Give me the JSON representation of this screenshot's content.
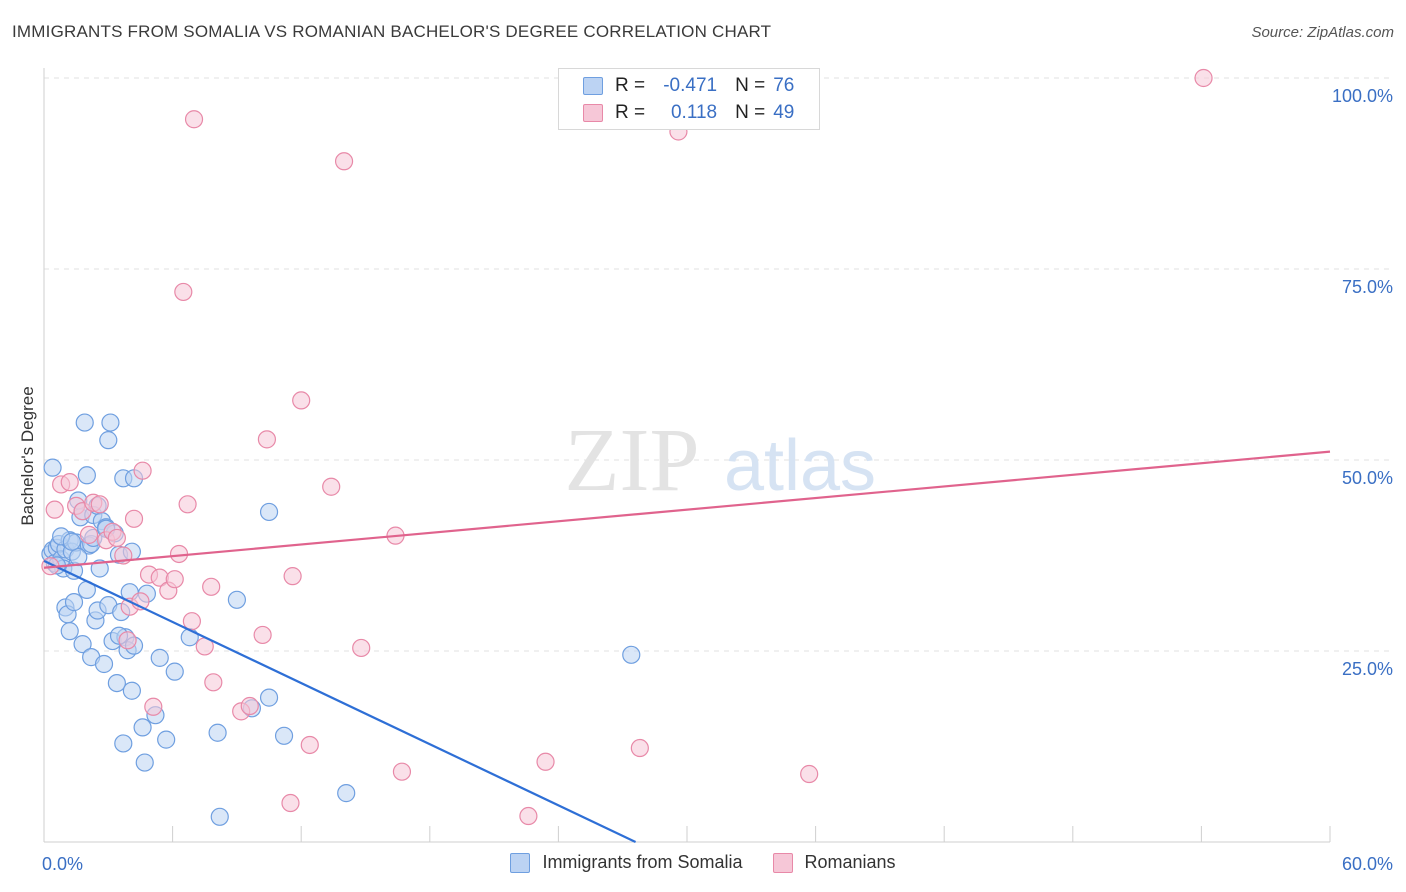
{
  "header": {
    "title": "IMMIGRANTS FROM SOMALIA VS ROMANIAN BACHELOR'S DEGREE CORRELATION CHART",
    "source": "Source: ZipAtlas.com"
  },
  "watermark": {
    "zip": "ZIP",
    "atlas": "atlas"
  },
  "legend": {
    "rows": [
      {
        "r_label": "R =",
        "r_value": "-0.471",
        "n_label": "N =",
        "n_value": "76",
        "color": "#6f9fe0",
        "fill": "#bcd3f3"
      },
      {
        "r_label": "R =",
        "r_value": "0.118",
        "n_label": "N =",
        "n_value": "49",
        "color": "#e889a8",
        "fill": "#f6c7d7"
      }
    ]
  },
  "bottom_legend": {
    "items": [
      {
        "label": "Immigrants from Somalia",
        "color": "#6f9fe0",
        "fill": "#bcd3f3"
      },
      {
        "label": "Romanians",
        "color": "#e889a8",
        "fill": "#f6c7d7"
      }
    ]
  },
  "chart_data": {
    "type": "scatter",
    "title": "IMMIGRANTS FROM SOMALIA VS ROMANIAN BACHELOR'S DEGREE CORRELATION CHART",
    "xlabel": "",
    "ylabel": "Bachelor's Degree",
    "xlim": [
      0,
      60
    ],
    "ylim": [
      0,
      100
    ],
    "x_tick_labels": [
      "0.0%",
      "60.0%"
    ],
    "y_ticks": [
      25,
      50,
      75,
      100
    ],
    "y_tick_labels": [
      "25.0%",
      "50.0%",
      "75.0%",
      "100.0%"
    ],
    "grid": true,
    "legend_position": "top-center",
    "series": [
      {
        "name": "Immigrants from Somalia",
        "color": "#6f9fe0",
        "fill": "#bcd3f3",
        "line_color": "#2e6fd6",
        "trend": {
          "x": [
            0,
            27.6
          ],
          "y": [
            36.8,
            0
          ]
        },
        "points": [
          [
            0.3,
            37.7
          ],
          [
            0.4,
            38.2
          ],
          [
            0.5,
            36.5
          ],
          [
            0.6,
            38.5
          ],
          [
            0.7,
            39.0
          ],
          [
            0.8,
            37.0
          ],
          [
            0.4,
            49.0
          ],
          [
            0.9,
            35.8
          ],
          [
            1.0,
            38.3
          ],
          [
            1.2,
            39.5
          ],
          [
            1.3,
            38.0
          ],
          [
            1.4,
            35.5
          ],
          [
            1.5,
            39.2
          ],
          [
            1.6,
            44.7
          ],
          [
            1.7,
            42.5
          ],
          [
            1.8,
            43.3
          ],
          [
            1.9,
            54.9
          ],
          [
            2.0,
            48.0
          ],
          [
            2.1,
            38.8
          ],
          [
            2.2,
            39.0
          ],
          [
            2.3,
            42.8
          ],
          [
            2.5,
            44.0
          ],
          [
            2.6,
            35.8
          ],
          [
            2.7,
            42.0
          ],
          [
            2.9,
            41.2
          ],
          [
            3.0,
            52.6
          ],
          [
            3.1,
            54.9
          ],
          [
            3.3,
            40.4
          ],
          [
            3.5,
            37.6
          ],
          [
            3.7,
            47.6
          ],
          [
            4.1,
            38.0
          ],
          [
            4.2,
            47.6
          ],
          [
            1.0,
            30.7
          ],
          [
            1.1,
            29.8
          ],
          [
            1.2,
            27.6
          ],
          [
            1.4,
            31.4
          ],
          [
            1.8,
            25.9
          ],
          [
            2.0,
            33.0
          ],
          [
            2.2,
            24.2
          ],
          [
            2.4,
            29.0
          ],
          [
            2.5,
            30.3
          ],
          [
            2.8,
            23.3
          ],
          [
            3.0,
            31.0
          ],
          [
            3.2,
            26.3
          ],
          [
            3.4,
            20.8
          ],
          [
            3.6,
            30.1
          ],
          [
            3.8,
            26.8
          ],
          [
            3.9,
            25.1
          ],
          [
            4.0,
            32.7
          ],
          [
            4.1,
            19.8
          ],
          [
            4.2,
            25.7
          ],
          [
            4.6,
            15.0
          ],
          [
            4.7,
            10.4
          ],
          [
            4.8,
            32.5
          ],
          [
            5.2,
            16.6
          ],
          [
            5.4,
            24.1
          ],
          [
            5.7,
            13.4
          ],
          [
            6.1,
            22.3
          ],
          [
            6.8,
            26.8
          ],
          [
            8.1,
            14.3
          ],
          [
            8.2,
            3.3
          ],
          [
            9.0,
            31.7
          ],
          [
            9.7,
            17.5
          ],
          [
            10.5,
            18.9
          ],
          [
            10.5,
            43.2
          ],
          [
            11.2,
            13.9
          ],
          [
            14.1,
            6.4
          ],
          [
            27.4,
            24.5
          ],
          [
            3.7,
            12.9
          ],
          [
            1.6,
            37.3
          ],
          [
            0.8,
            40.0
          ],
          [
            2.3,
            39.8
          ],
          [
            3.5,
            27.0
          ],
          [
            1.3,
            39.3
          ],
          [
            2.9,
            41.0
          ],
          [
            0.6,
            36.2
          ]
        ]
      },
      {
        "name": "Romanians",
        "color": "#e889a8",
        "fill": "#f6c7d7",
        "line_color": "#e0638d",
        "trend": {
          "x": [
            0,
            60
          ],
          "y": [
            35.9,
            51.1
          ]
        },
        "points": [
          [
            0.3,
            36.1
          ],
          [
            0.5,
            43.5
          ],
          [
            0.8,
            46.8
          ],
          [
            1.2,
            47.1
          ],
          [
            1.5,
            44.0
          ],
          [
            1.8,
            43.3
          ],
          [
            2.1,
            40.2
          ],
          [
            2.3,
            44.4
          ],
          [
            2.6,
            44.2
          ],
          [
            2.9,
            39.5
          ],
          [
            3.2,
            40.6
          ],
          [
            3.4,
            39.8
          ],
          [
            3.7,
            37.5
          ],
          [
            3.9,
            26.4
          ],
          [
            4.0,
            30.8
          ],
          [
            4.2,
            42.3
          ],
          [
            4.5,
            31.5
          ],
          [
            4.6,
            48.6
          ],
          [
            4.9,
            35.0
          ],
          [
            5.1,
            17.7
          ],
          [
            5.4,
            34.6
          ],
          [
            5.8,
            32.9
          ],
          [
            6.1,
            34.4
          ],
          [
            6.3,
            37.7
          ],
          [
            6.5,
            72.0
          ],
          [
            6.7,
            44.2
          ],
          [
            6.9,
            28.9
          ],
          [
            7.0,
            94.6
          ],
          [
            7.5,
            25.6
          ],
          [
            7.8,
            33.4
          ],
          [
            7.9,
            20.9
          ],
          [
            9.2,
            17.1
          ],
          [
            9.6,
            17.8
          ],
          [
            10.2,
            27.1
          ],
          [
            10.4,
            52.7
          ],
          [
            11.5,
            5.1
          ],
          [
            11.6,
            34.8
          ],
          [
            12.0,
            57.8
          ],
          [
            12.4,
            12.7
          ],
          [
            13.4,
            46.5
          ],
          [
            14.0,
            89.1
          ],
          [
            14.8,
            25.4
          ],
          [
            16.4,
            40.1
          ],
          [
            16.7,
            9.2
          ],
          [
            22.6,
            3.4
          ],
          [
            23.4,
            10.5
          ],
          [
            27.8,
            12.3
          ],
          [
            29.6,
            93.0
          ],
          [
            35.7,
            8.9
          ],
          [
            54.1,
            100.0
          ]
        ]
      }
    ]
  }
}
